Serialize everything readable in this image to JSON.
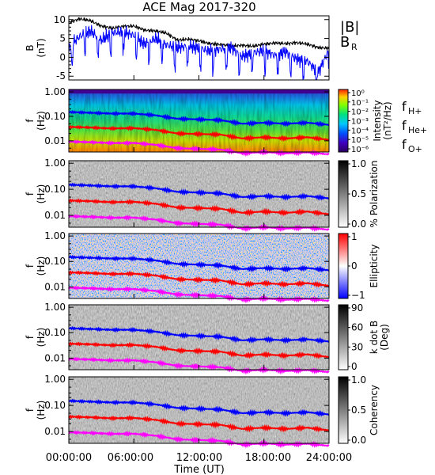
{
  "title": "ACE Mag 2017-320",
  "x_axis": {
    "label": "Time (UT)",
    "ticks": [
      "00:00:00",
      "06:00:00",
      "12:00:00",
      "18:00:00",
      "24:00:00"
    ],
    "range_hours": [
      0,
      24
    ]
  },
  "colors": {
    "total_field": "#000000",
    "radial_field": "#0000ff",
    "h_plus": "#0000ff",
    "he_plus": "#ff0000",
    "o_plus": "#ff00ff"
  },
  "chart_data": [
    {
      "type": "line",
      "panel": "magnetic-field",
      "ylabel": "B",
      "yunit": "(nT)",
      "ylim": [
        -6,
        11
      ],
      "yticks": [
        "10",
        "5",
        "0",
        "-5"
      ],
      "legend": [
        {
          "name": "|B|",
          "color": "#000000"
        },
        {
          "name": "B",
          "sub": "R",
          "color": "#0000ff"
        }
      ],
      "x": [
        0,
        1,
        2,
        3,
        4,
        5,
        6,
        7,
        8,
        9,
        10,
        11,
        12,
        13,
        14,
        15,
        16,
        17,
        18,
        19,
        20,
        21,
        22,
        23,
        24
      ],
      "series": [
        {
          "name": "|B|",
          "color": "#000000",
          "values": [
            9.2,
            10.2,
            9.7,
            8.3,
            7.7,
            8.2,
            8.3,
            7.2,
            7.0,
            6.4,
            4.6,
            4.8,
            4.4,
            3.6,
            3.4,
            3.0,
            3.2,
            2.9,
            3.5,
            3.8,
            3.6,
            3.9,
            3.5,
            2.6,
            2.4
          ]
        },
        {
          "name": "BR",
          "color": "#0000ff",
          "values": [
            3.0,
            5.5,
            7.0,
            4.5,
            6.5,
            6.8,
            5.8,
            3.5,
            5.0,
            3.3,
            2.5,
            3.0,
            2.5,
            1.6,
            2.2,
            2.5,
            0.2,
            1.2,
            1.8,
            0.5,
            1.5,
            -0.5,
            -1.0,
            -4.0,
            2.0
          ]
        }
      ]
    },
    {
      "type": "heatmap",
      "panel": "intensity",
      "ylabel": "f",
      "yunit": "(Hz)",
      "yscale": "log",
      "yticks": [
        "1.00",
        "0.10",
        "0.01"
      ],
      "colorbar": {
        "label": "Intensity",
        "unit": "(nT²/Hz)",
        "scale": "rainbow",
        "ticks": [
          "10⁰",
          "10⁻¹",
          "10⁻²",
          "10⁻³",
          "10⁻⁴",
          "10⁻⁵",
          "10⁻⁶"
        ]
      },
      "legend": [
        {
          "name": "f",
          "sub": "H+",
          "color": "#0000ff"
        },
        {
          "name": "f",
          "sub": "He+",
          "color": "#ff0000"
        },
        {
          "name": "f",
          "sub": "O+",
          "color": "#ff00ff"
        }
      ]
    },
    {
      "type": "heatmap",
      "panel": "polarization",
      "ylabel": "f",
      "yunit": "(Hz)",
      "yscale": "log",
      "yticks": [
        "1.00",
        "0.10",
        "0.01"
      ],
      "colorbar": {
        "label": "% Polarization",
        "unit": "",
        "scale": "gray",
        "ticks": [
          "1.0",
          "0.5",
          "0.0"
        ]
      }
    },
    {
      "type": "heatmap",
      "panel": "ellipticity",
      "ylabel": "f",
      "yunit": "(Hz)",
      "yscale": "log",
      "yticks": [
        "1.00",
        "0.10",
        "0.01"
      ],
      "colorbar": {
        "label": "Ellipticity",
        "unit": "",
        "scale": "bwr",
        "ticks": [
          "1",
          "0",
          "−1"
        ]
      }
    },
    {
      "type": "heatmap",
      "panel": "k-dot-b",
      "ylabel": "f",
      "yunit": "(Hz)",
      "yscale": "log",
      "yticks": [
        "1.00",
        "0.10",
        "0.01"
      ],
      "colorbar": {
        "label": "k dot B",
        "unit": "(Deg)",
        "scale": "gray",
        "ticks": [
          "90",
          "60",
          "30",
          "0"
        ]
      }
    },
    {
      "type": "heatmap",
      "panel": "coherency",
      "ylabel": "f",
      "yunit": "(Hz)",
      "yscale": "log",
      "yticks": [
        "1.00",
        "0.10",
        "0.01"
      ],
      "colorbar": {
        "label": "Coherency",
        "unit": "",
        "scale": "gray",
        "ticks": [
          "1.0",
          "0.5",
          "0.0"
        ]
      }
    }
  ],
  "gyrofrequencies_hz": {
    "x": [
      0,
      2,
      4,
      6,
      8,
      10,
      12,
      14,
      16,
      18,
      20,
      22,
      24
    ],
    "h_plus": [
      0.15,
      0.14,
      0.13,
      0.13,
      0.11,
      0.08,
      0.075,
      0.07,
      0.05,
      0.055,
      0.05,
      0.055,
      0.045
    ],
    "he_plus": [
      0.037,
      0.035,
      0.032,
      0.033,
      0.028,
      0.02,
      0.019,
      0.018,
      0.0125,
      0.014,
      0.0125,
      0.014,
      0.011
    ],
    "o_plus": [
      0.0093,
      0.0088,
      0.0081,
      0.0082,
      0.0069,
      0.005,
      0.0047,
      0.0044,
      0.0031,
      0.0035,
      0.0031,
      0.0034,
      0.0028
    ]
  }
}
